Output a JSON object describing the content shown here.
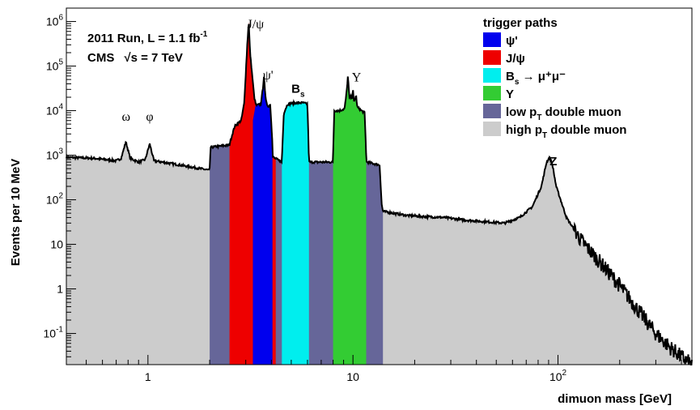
{
  "chart_data": {
    "type": "area",
    "x_scale": "log",
    "y_scale": "log",
    "xlim": [
      0.4,
      450
    ],
    "ylim": [
      0.02,
      2000000
    ],
    "xlabel": "dimuon mass [GeV]",
    "ylabel": "Events per 10 MeV",
    "x_ticks": [
      {
        "value": 1,
        "base": "1",
        "exp": ""
      },
      {
        "value": 10,
        "base": "10",
        "exp": ""
      },
      {
        "value": 100,
        "base": "10",
        "exp": "2"
      }
    ],
    "y_ticks": [
      {
        "value": 0.1,
        "base": "10",
        "exp": "-1"
      },
      {
        "value": 1,
        "base": "1",
        "exp": ""
      },
      {
        "value": 10,
        "base": "10",
        "exp": ""
      },
      {
        "value": 100,
        "base": "10",
        "exp": "2"
      },
      {
        "value": 1000,
        "base": "10",
        "exp": "3"
      },
      {
        "value": 10000,
        "base": "10",
        "exp": "4"
      },
      {
        "value": 100000,
        "base": "10",
        "exp": "5"
      },
      {
        "value": 1000000,
        "base": "10",
        "exp": "6"
      }
    ],
    "info": {
      "line1": "2011 Run, L = 1.1 fb",
      "line1_sup": "-1",
      "line2_a": "CMS",
      "line2_sqrt": "√s",
      "line2_b": " = 7 TeV"
    },
    "peak_labels": [
      {
        "name": "ω",
        "mass": 0.782,
        "y": 6000
      },
      {
        "name": "φ",
        "mass": 1.02,
        "y": 6000
      },
      {
        "name": "J/ψ",
        "mass": 3.35,
        "y": 700000
      },
      {
        "name": "ψ'",
        "mass": 3.85,
        "y": 50000
      },
      {
        "name": "B",
        "sub": "s",
        "mass": 5.4,
        "y": 25000
      },
      {
        "name": "Υ",
        "mass": 10.4,
        "y": 45000
      },
      {
        "name": "Z",
        "mass": 95,
        "y": 600
      }
    ],
    "legend": {
      "title": "trigger paths",
      "position": "top-right",
      "entries": [
        {
          "label": "ψ'",
          "color": "#0000ee"
        },
        {
          "label": "J/ψ",
          "color": "#ee0000"
        },
        {
          "label": "B",
          "sub": "s",
          "suffix": " → μ⁺μ⁻",
          "color": "#00eeee"
        },
        {
          "label": "Υ",
          "color": "#33cc33"
        },
        {
          "label": "low p",
          "sub": "T",
          "suffix": " double muon",
          "color": "#666699"
        },
        {
          "label": "high p",
          "sub": "T",
          "suffix": " double muon",
          "color": "#cccccc"
        }
      ]
    },
    "series": [
      {
        "name": "high pT double muon",
        "color": "#cccccc",
        "points": [
          [
            0.4,
            900
          ],
          [
            0.55,
            850
          ],
          [
            0.7,
            750
          ],
          [
            0.74,
            850
          ],
          [
            0.78,
            2000
          ],
          [
            0.82,
            850
          ],
          [
            0.9,
            700
          ],
          [
            0.97,
            800
          ],
          [
            1.02,
            1800
          ],
          [
            1.07,
            750
          ],
          [
            1.3,
            650
          ],
          [
            1.6,
            550
          ],
          [
            2.0,
            460
          ],
          [
            2.5,
            420
          ],
          [
            2.8,
            450
          ],
          [
            2.95,
            700
          ],
          [
            3.02,
            3000
          ],
          [
            3.08,
            12000
          ],
          [
            3.12,
            2500
          ],
          [
            3.25,
            500
          ],
          [
            3.6,
            300
          ],
          [
            3.68,
            700
          ],
          [
            3.76,
            200
          ],
          [
            4.5,
            150
          ],
          [
            6,
            110
          ],
          [
            8,
            85
          ],
          [
            9.2,
            100
          ],
          [
            9.45,
            350
          ],
          [
            9.6,
            150
          ],
          [
            9.9,
            150
          ],
          [
            10.0,
            180
          ],
          [
            10.15,
            110
          ],
          [
            10.4,
            100
          ],
          [
            11,
            70
          ],
          [
            14,
            55
          ],
          [
            18,
            45
          ],
          [
            22,
            42
          ],
          [
            28,
            40
          ],
          [
            35,
            35
          ],
          [
            45,
            32
          ],
          [
            55,
            30
          ],
          [
            65,
            40
          ],
          [
            75,
            70
          ],
          [
            83,
            200
          ],
          [
            88,
            700
          ],
          [
            91,
            900
          ],
          [
            94,
            600
          ],
          [
            98,
            200
          ],
          [
            110,
            40
          ],
          [
            130,
            12
          ],
          [
            160,
            4
          ],
          [
            200,
            1.2
          ],
          [
            250,
            0.3
          ],
          [
            300,
            0.1
          ],
          [
            350,
            0.05
          ],
          [
            400,
            0.03
          ],
          [
            450,
            0.02
          ]
        ]
      },
      {
        "name": "low pT double muon",
        "color": "#666699",
        "points": [
          [
            2.0,
            460
          ],
          [
            2.02,
            1500
          ],
          [
            2.5,
            1700
          ],
          [
            2.9,
            2200
          ],
          [
            2.98,
            4000
          ],
          [
            3.02,
            8000
          ],
          [
            3.08,
            20000
          ],
          [
            3.12,
            4000
          ],
          [
            3.25,
            1300
          ],
          [
            3.6,
            1100
          ],
          [
            3.68,
            3000
          ],
          [
            3.76,
            1100
          ],
          [
            4.5,
            700
          ],
          [
            6,
            700
          ],
          [
            8,
            700
          ],
          [
            9.2,
            700
          ],
          [
            9.45,
            3000
          ],
          [
            9.6,
            1200
          ],
          [
            9.9,
            1000
          ],
          [
            10.0,
            1300
          ],
          [
            10.15,
            900
          ],
          [
            10.4,
            800
          ],
          [
            11,
            750
          ],
          [
            13.5,
            600
          ],
          [
            13.8,
            80
          ],
          [
            14,
            55
          ]
        ]
      },
      {
        "name": "J/ψ",
        "color": "#ee0000",
        "points": [
          [
            2.5,
            1800
          ],
          [
            2.65,
            4500
          ],
          [
            2.85,
            6000
          ],
          [
            2.95,
            15000
          ],
          [
            3.05,
            300000
          ],
          [
            3.1,
            1000000
          ],
          [
            3.15,
            200000
          ],
          [
            3.3,
            20000
          ],
          [
            3.45,
            8000
          ],
          [
            3.6,
            3000
          ],
          [
            3.66,
            6000
          ],
          [
            3.72,
            4000
          ],
          [
            3.8,
            2000
          ],
          [
            4.0,
            1000
          ],
          [
            4.2,
            800
          ]
        ]
      },
      {
        "name": "ψ'",
        "color": "#0000ee",
        "points": [
          [
            3.25,
            6000
          ],
          [
            3.35,
            13000
          ],
          [
            3.55,
            14000
          ],
          [
            3.63,
            30000
          ],
          [
            3.68,
            60000
          ],
          [
            3.74,
            20000
          ],
          [
            3.85,
            12000
          ],
          [
            3.95,
            14000
          ],
          [
            4.05,
            1800
          ]
        ]
      },
      {
        "name": "Bs → μ+μ-",
        "color": "#00eeee",
        "points": [
          [
            4.5,
            800
          ],
          [
            4.6,
            9000
          ],
          [
            4.8,
            14000
          ],
          [
            5.2,
            15000
          ],
          [
            5.7,
            15000
          ],
          [
            6.0,
            14000
          ],
          [
            6.1,
            800
          ]
        ]
      },
      {
        "name": "Υ",
        "color": "#33cc33",
        "points": [
          [
            8.0,
            1000
          ],
          [
            8.1,
            10000
          ],
          [
            8.6,
            10000
          ],
          [
            9.1,
            11000
          ],
          [
            9.3,
            25000
          ],
          [
            9.45,
            60000
          ],
          [
            9.6,
            20000
          ],
          [
            9.9,
            20000
          ],
          [
            10.0,
            30000
          ],
          [
            10.1,
            15000
          ],
          [
            10.35,
            22000
          ],
          [
            10.5,
            12000
          ],
          [
            11.0,
            10000
          ],
          [
            11.4,
            9000
          ],
          [
            11.6,
            1000
          ]
        ]
      }
    ]
  }
}
